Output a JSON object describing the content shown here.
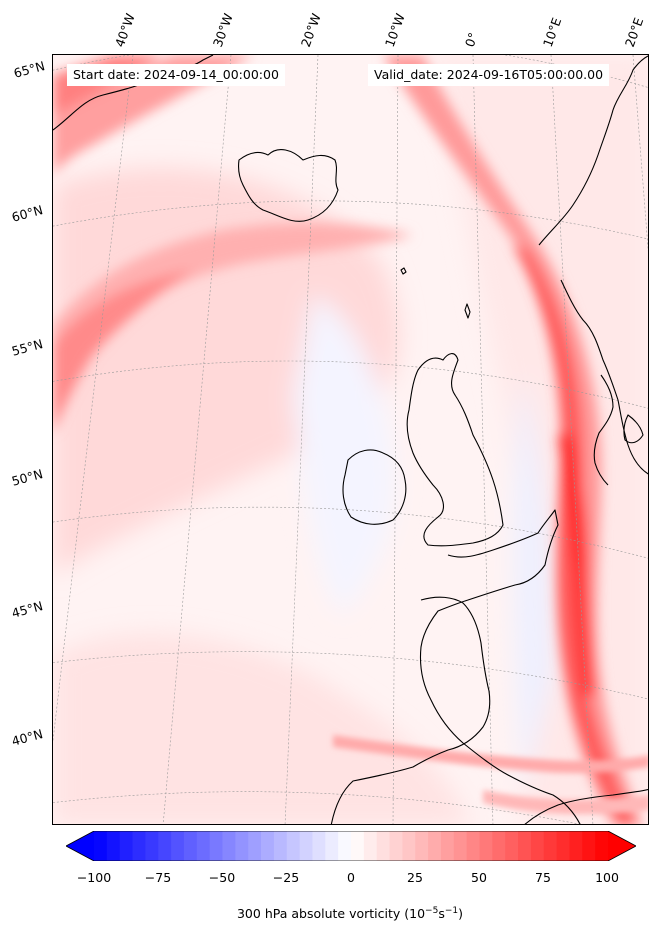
{
  "header": {
    "start_date": "Start date: 2024-09-14_00:00:00",
    "valid_date": "Valid_date: 2024-09-16T05:00:00.00"
  },
  "longitude_labels": [
    "40°W",
    "30°W",
    "20°W",
    "10°W",
    "0°",
    "10°E",
    "20°E"
  ],
  "latitude_labels": [
    "65°N",
    "60°N",
    "55°N",
    "50°N",
    "45°N",
    "40°N"
  ],
  "colorbar": {
    "ticks": [
      "−100",
      "−75",
      "−50",
      "−25",
      "0",
      "25",
      "50",
      "75",
      "100"
    ],
    "range": [
      -100,
      100
    ],
    "label_main": "300 hPa absolute vorticity (10",
    "label_exp1": "−5",
    "label_mid": "s",
    "label_exp2": "−1",
    "label_end": ")",
    "low_color": "#0000ff",
    "mid_color": "#ffffff",
    "high_color": "#ff0000"
  }
}
